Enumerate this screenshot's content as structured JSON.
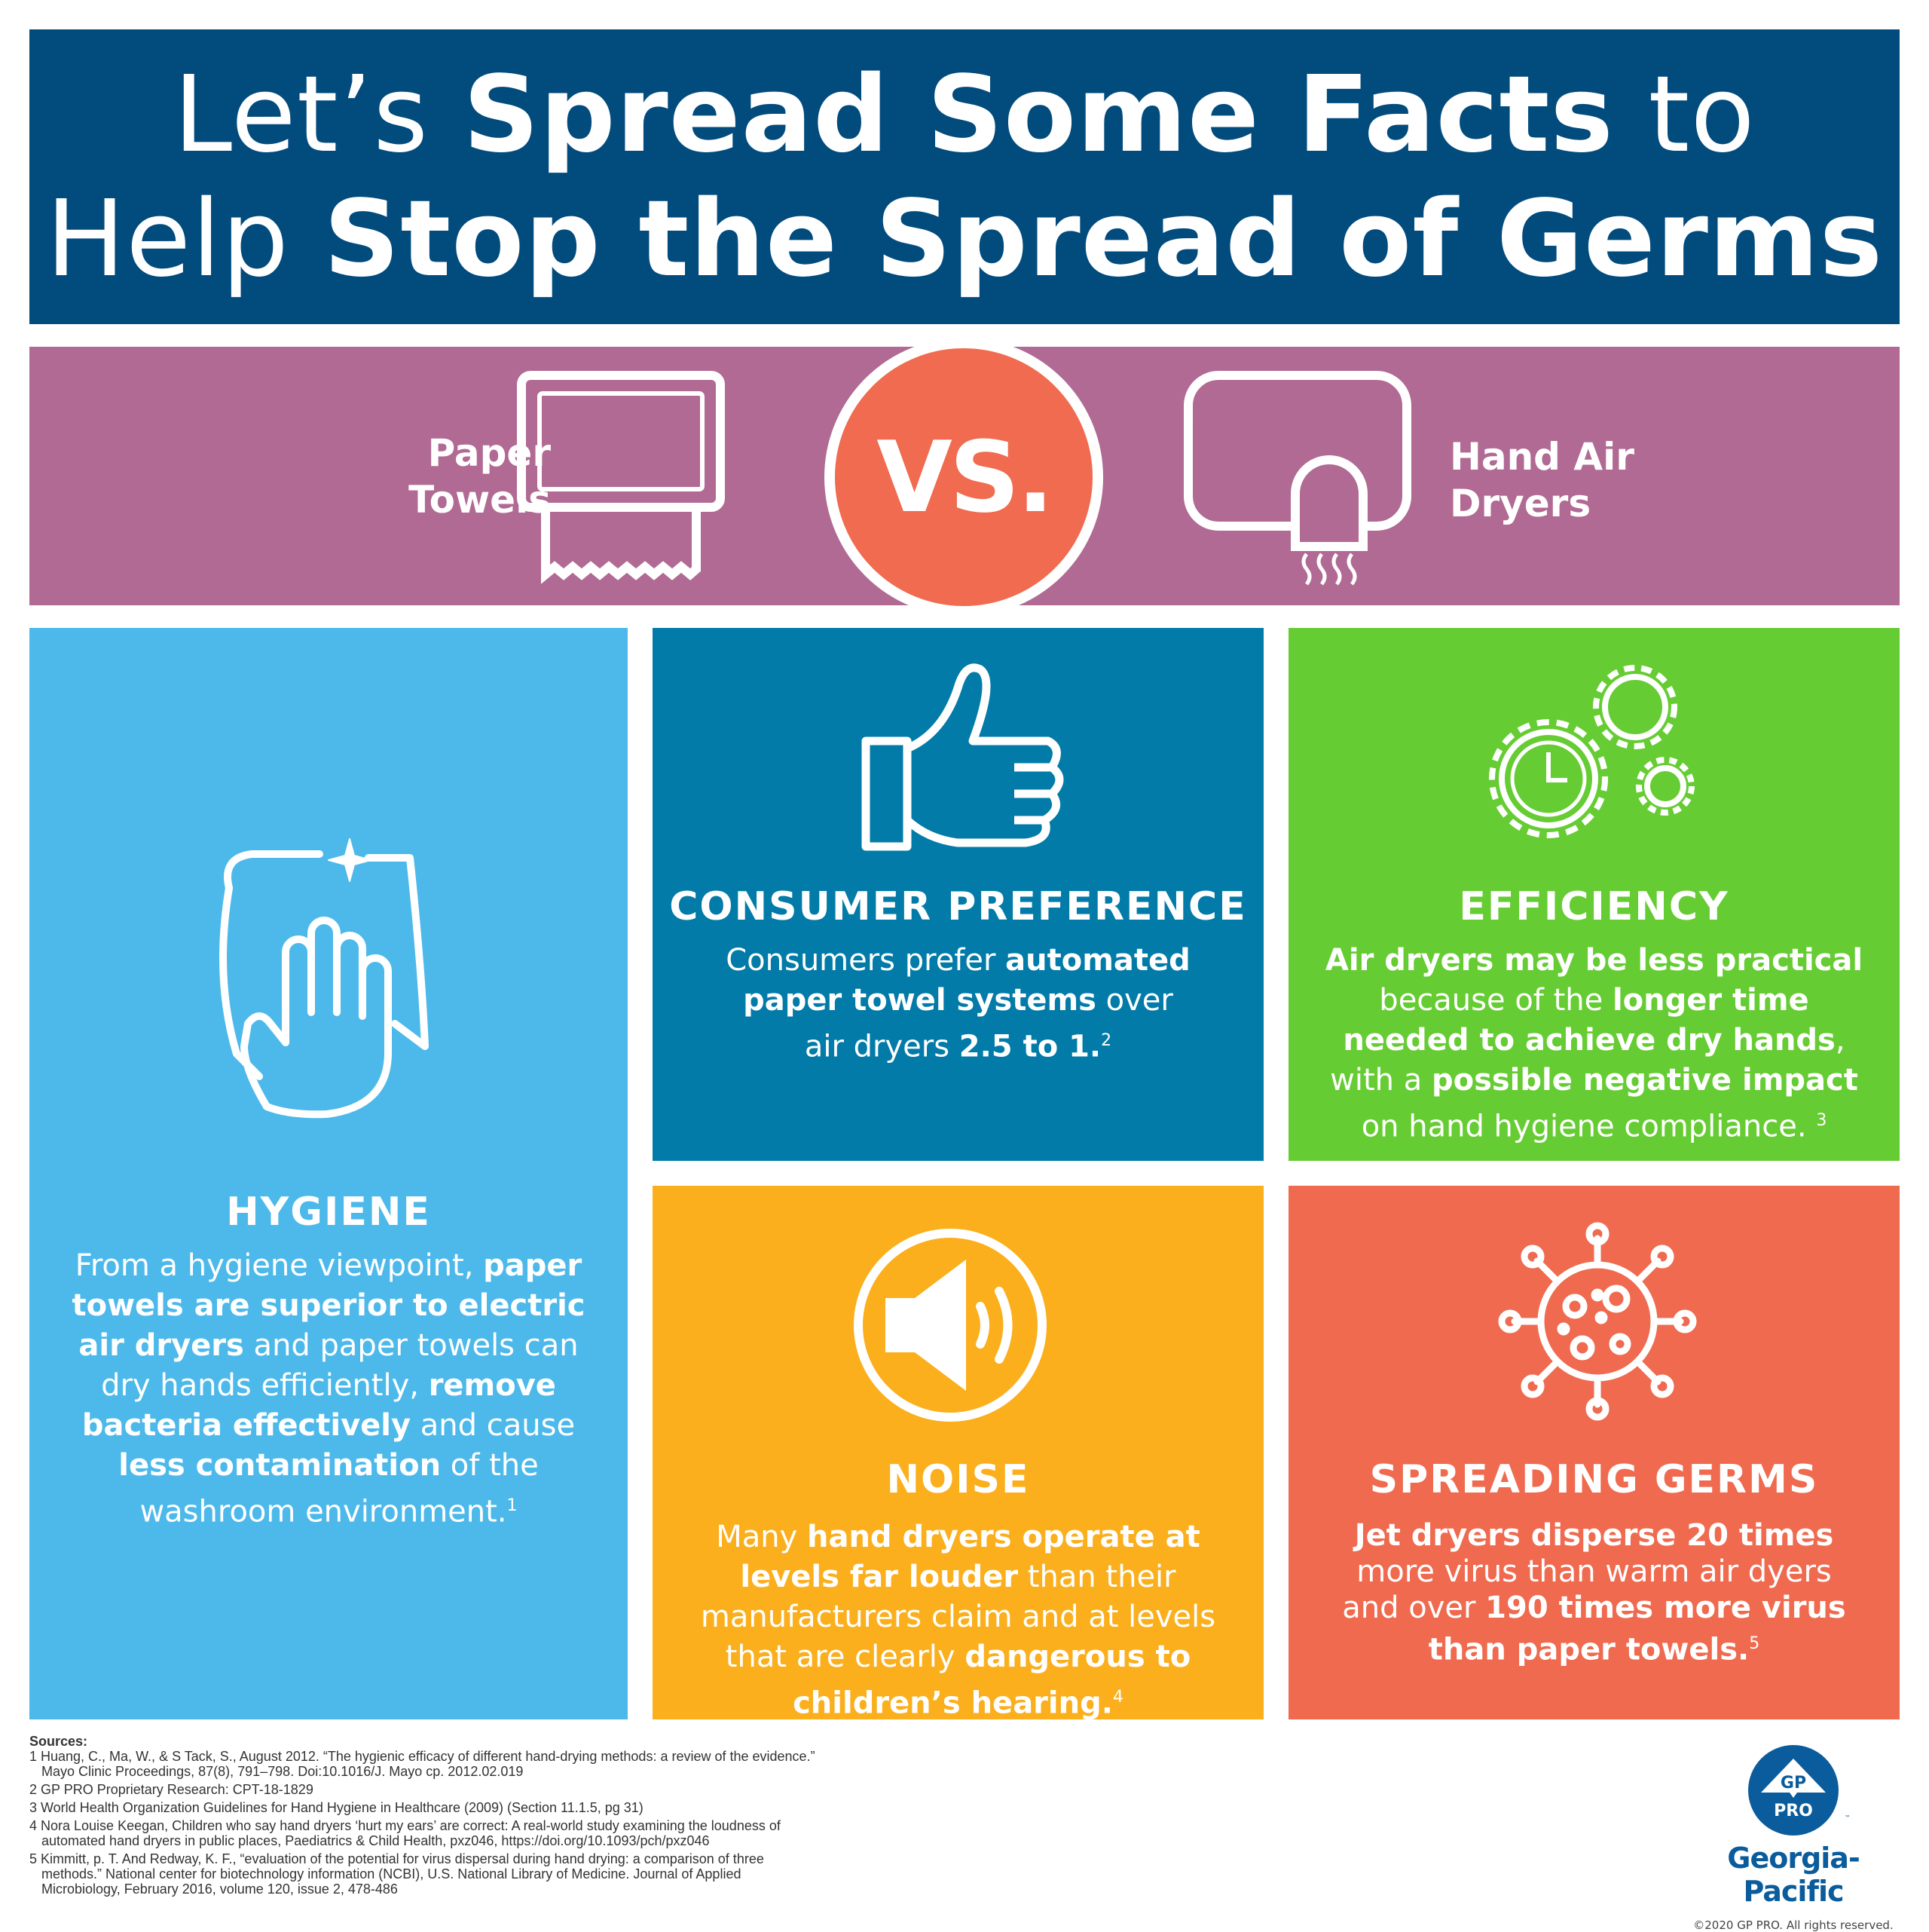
{
  "header": {
    "line1": [
      {
        "t": "Let’s ",
        "b": false
      },
      {
        "t": "Spread Some Facts",
        "b": true
      },
      {
        "t": " to",
        "b": false
      }
    ],
    "line2": [
      {
        "t": "Help ",
        "b": false
      },
      {
        "t": "Stop the Spread of Germs",
        "b": true
      }
    ]
  },
  "comparison": {
    "left_label_1": "Paper",
    "left_label_2": "Towels",
    "vs": "VS.",
    "right_label_1": "Hand Air",
    "right_label_2": "Dryers",
    "left_icon": "paper-towel-dispenser-icon",
    "right_icon": "hand-dryer-icon"
  },
  "panels": {
    "hygiene": {
      "title": "HYGIENE",
      "icon": "hand-towel-icon",
      "color": "#4db9ea",
      "text": [
        {
          "t": "From a hygiene viewpoint, ",
          "b": false
        },
        {
          "t": "paper towels are superior to electric air dryers",
          "b": true
        },
        {
          "t": " and paper towels can dry hands efficiently, ",
          "b": false
        },
        {
          "t": "remove bacteria effectively",
          "b": true
        },
        {
          "t": " and cause ",
          "b": false
        },
        {
          "t": "less contamination",
          "b": true
        },
        {
          "t": " of the washroom environment.",
          "b": false
        }
      ],
      "sup": "1"
    },
    "consumer": {
      "title": "CONSUMER PREFERENCE",
      "icon": "thumbs-up-icon",
      "color": "#027ba8",
      "text": [
        {
          "t": "Consumers prefer ",
          "b": false
        },
        {
          "t": "automated paper towel systems",
          "b": true
        },
        {
          "t": " over air dryers ",
          "b": false
        },
        {
          "t": "2.5 to 1.",
          "b": true
        }
      ],
      "sup": "2"
    },
    "efficiency": {
      "title": "EFFICIENCY",
      "icon": "gears-clock-icon",
      "color": "#66cc33",
      "text": [
        {
          "t": "Air dryers may be less practical",
          "b": true
        },
        {
          "t": " because of the ",
          "b": false
        },
        {
          "t": "longer time needed to achieve dry hands",
          "b": true
        },
        {
          "t": ", with a ",
          "b": false
        },
        {
          "t": "possible negative impact",
          "b": true
        },
        {
          "t": " on hand hygiene compliance. ",
          "b": false
        }
      ],
      "sup": "3"
    },
    "noise": {
      "title": "NOISE",
      "icon": "speaker-icon",
      "color": "#fbaf1d",
      "text": [
        {
          "t": "Many ",
          "b": false
        },
        {
          "t": "hand dryers operate at levels far louder",
          "b": true
        },
        {
          "t": " than their manufacturers claim and at levels that are clearly ",
          "b": false
        },
        {
          "t": "dangerous to children’s hearing.",
          "b": true
        }
      ],
      "sup": "4"
    },
    "germs": {
      "title": "SPREADING GERMS",
      "icon": "virus-icon",
      "color": "#ef6a4f",
      "text": [
        {
          "t": "Jet dryers disperse 20 times",
          "b": true
        },
        {
          "t": " more virus than warm air dyers and over ",
          "b": false
        },
        {
          "t": "190 times more virus than paper towels.",
          "b": true
        }
      ],
      "sup": "5"
    }
  },
  "sources": {
    "heading": "Sources:",
    "items": [
      {
        "l1": "1 Huang, C., Ma, W., & S Tack, S., August 2012. “The hygienic efficacy of different hand-drying methods: a review of the evidence.”",
        "l2": "Mayo Clinic Proceedings, 87(8), 791–798. Doi:10.1016/J. Mayo cp. 2012.02.019"
      },
      {
        "l1": "2 GP PRO Proprietary Research: CPT-18-1829",
        "l2": ""
      },
      {
        "l1": "3 World Health Organization Guidelines for Hand Hygiene in Healthcare (2009)  (Section 11.1.5, pg 31)",
        "l2": ""
      },
      {
        "l1": "4 Nora Louise Keegan, Children who say hand dryers ‘hurt my ears’ are correct: A real-world study examining the loudness of",
        "l2": "automated hand dryers in public places, Paediatrics & Child Health, pxz046, https://doi.org/10.1093/pch/pxz046"
      },
      {
        "l1": "5 Kimmitt, p. T. And Redway, K. F., “evaluation of the potential for virus dispersal during hand drying: a comparison of three",
        "l2": "methods.” National center for biotechnology information (NCBI), U.S. National Library of Medicine. Journal of Applied",
        "l3": "Microbiology, February 2016, volume 120, issue 2, 478-486"
      }
    ]
  },
  "logo": {
    "badge_top": "GP",
    "badge_bottom": "PRO",
    "tm": "™",
    "brand": "Georgia-Pacific",
    "copyright": "©2020 GP PRO. All rights reserved.",
    "color": "#0a5c9c"
  }
}
